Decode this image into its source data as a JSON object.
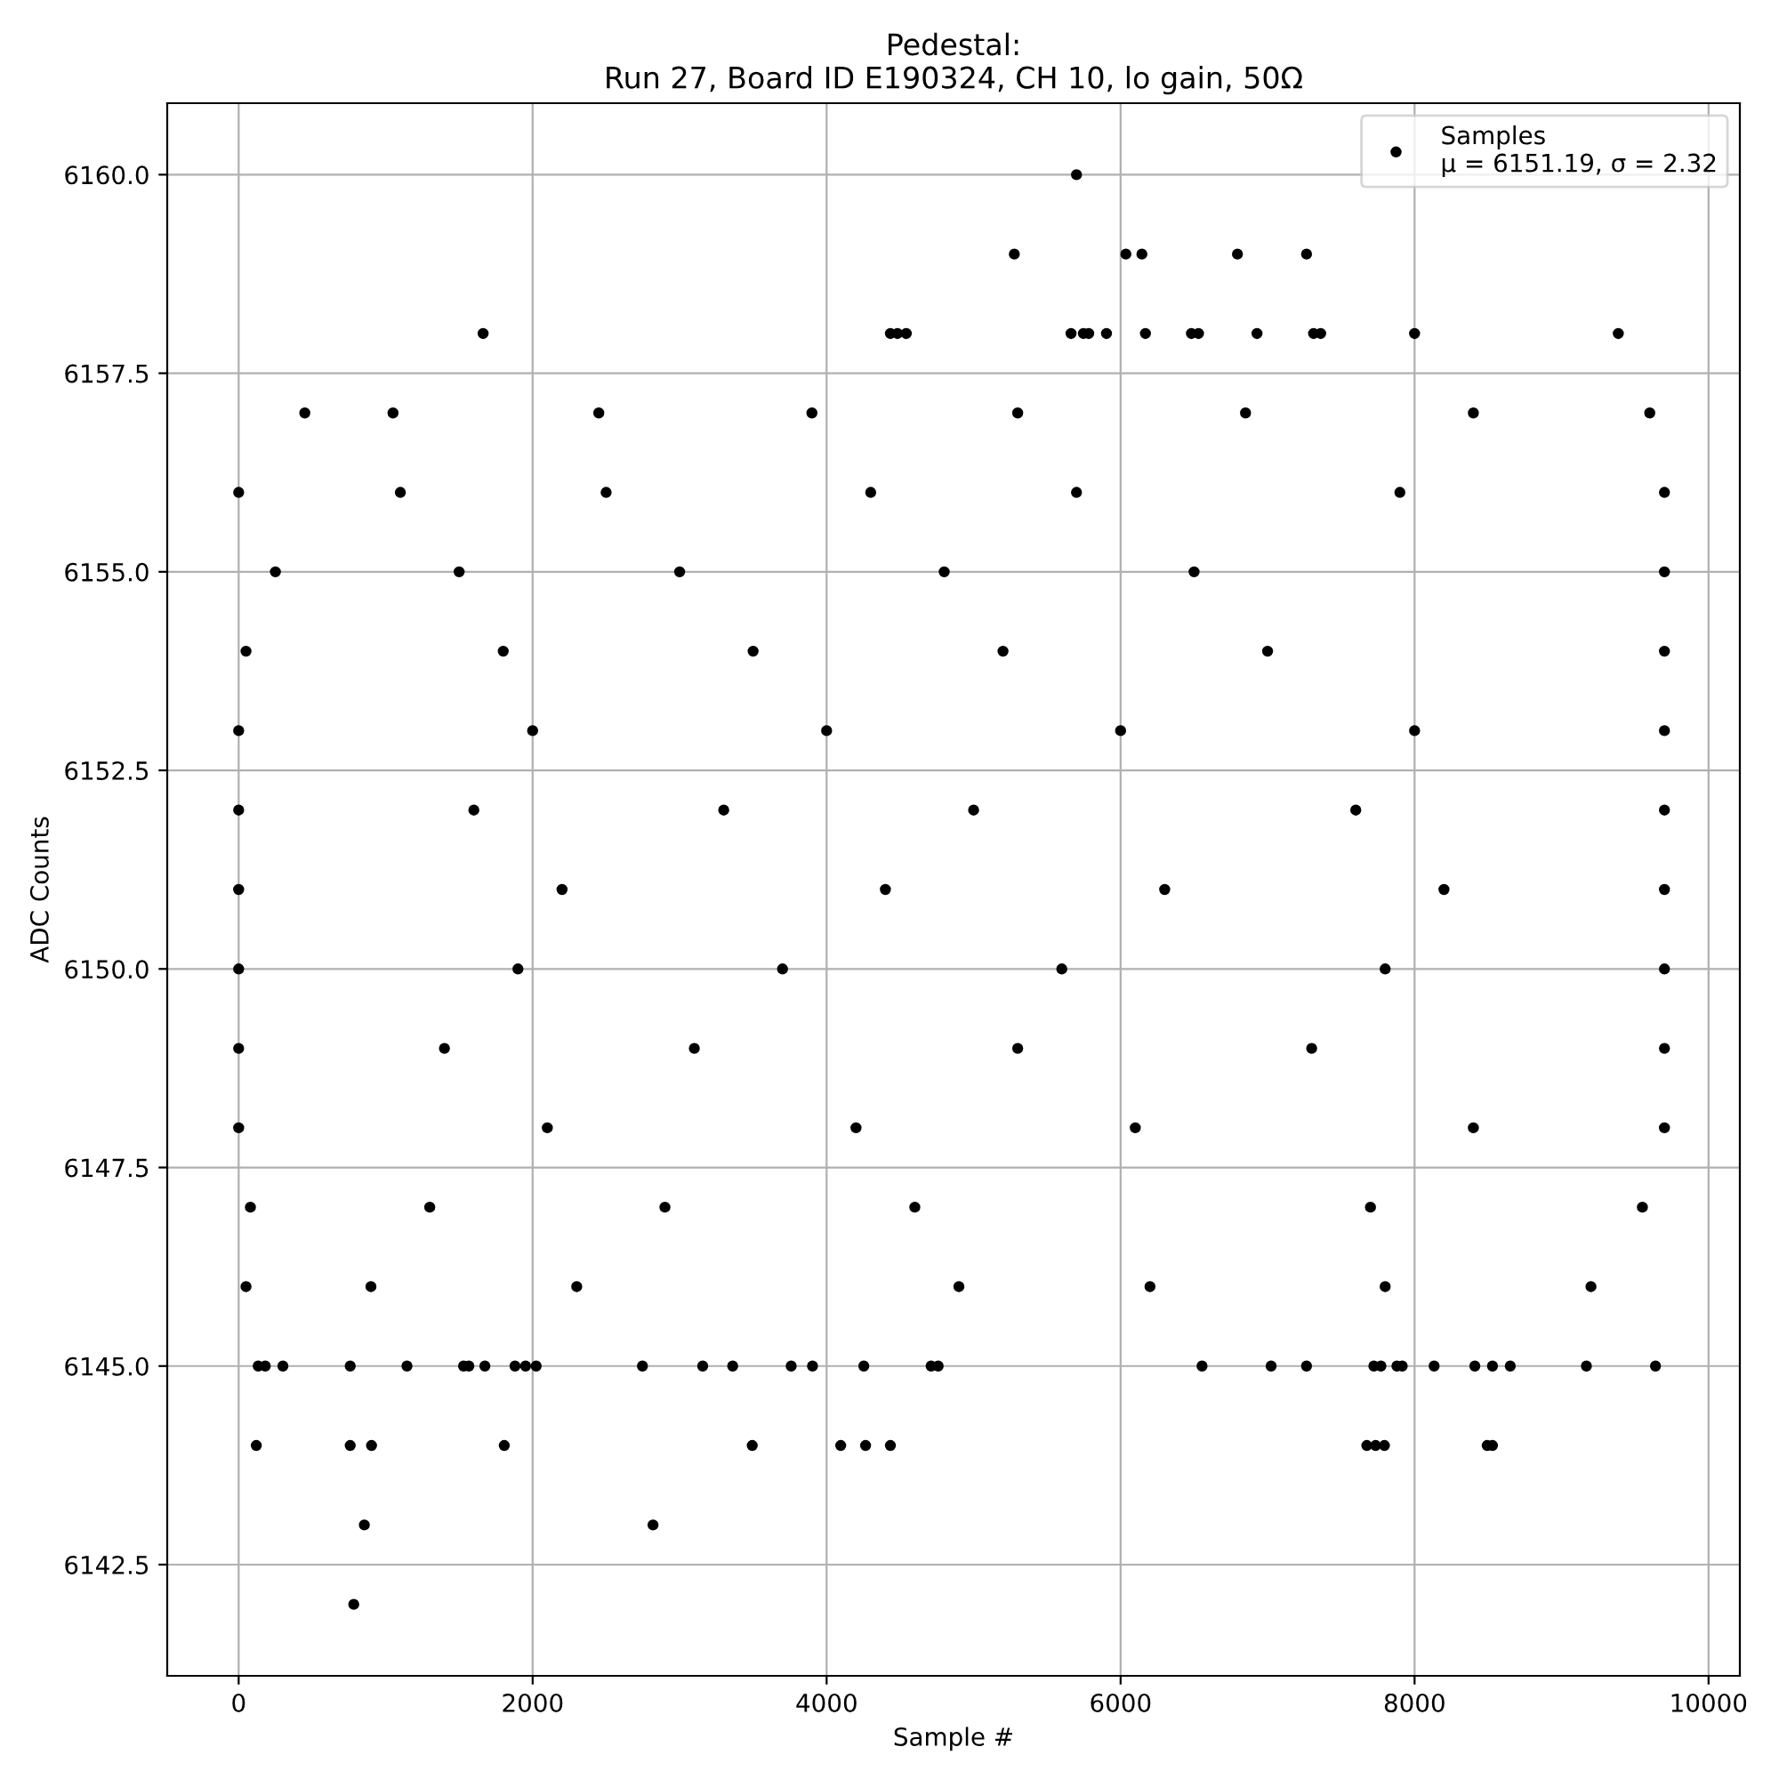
{
  "chart_data": {
    "type": "scatter",
    "title": "Pedestal:\nRun 27, Board ID E190324, CH 10, lo gain, 50Ω",
    "xlabel": "Sample #",
    "ylabel": "ADC Counts",
    "xlim": [
      -486,
      10213
    ],
    "ylim": [
      6141.1,
      6160.9
    ],
    "xticks": [
      0,
      2000,
      4000,
      6000,
      8000,
      10000
    ],
    "yticks": [
      {
        "value": 6142.5,
        "label": "6142.5"
      },
      {
        "value": 6145,
        "label": "6145.0"
      },
      {
        "value": 6147.5,
        "label": "6147.5"
      },
      {
        "value": 6150,
        "label": "6150.0"
      },
      {
        "value": 6152.5,
        "label": "6152.5"
      },
      {
        "value": 6155,
        "label": "6155.0"
      },
      {
        "value": 6157.5,
        "label": "6157.5"
      },
      {
        "value": 6160,
        "label": "6160.0"
      }
    ],
    "grid": true,
    "legend": "top right",
    "marker": "circle",
    "series": [
      {
        "name": "Samples\nμ = 6151.19, σ = 2.32",
        "color": "#000000",
        "x": [
          5700,
          5277,
          6036,
          6145,
          6795,
          7265,
          1663,
          4434,
          4482,
          4542,
          5663,
          5747,
          5783,
          5904,
          6169,
          6482,
          6530,
          6928,
          7313,
          7361,
          8000,
          9386,
          855,
          2819,
          783,
          120,
          759,
          904,
          1807,
          3494,
          4096,
          4265,
          4434,
          7675,
          7735,
          7795,
          8494,
          8530,
          133,
          181,
          301,
          759,
          1145,
          1530,
          1566,
          1675,
          1880,
          1952,
          2024,
          2747,
          3157,
          3361,
          3759,
          3904,
          4253,
          4711,
          4759,
          6554,
          7024,
          7265,
          7723,
          7771,
          7880,
          7916,
          8133,
          8410,
          8530,
          8651,
          9169,
          9639,
          450,
          1050,
          2450,
          3900,
          5300,
          6850,
          8400,
          9600,
          0,
          1100,
          2500,
          4300,
          5700,
          7900,
          9700,
          250,
          1500,
          3000,
          4800,
          6500,
          9700,
          50,
          1800,
          3500,
          5200,
          7000,
          9700,
          0,
          2000,
          4000,
          6000,
          8000,
          9700,
          0,
          1600,
          3300,
          5000,
          7600,
          9700,
          0,
          2200,
          4400,
          6300,
          8200,
          9700,
          0,
          1900,
          3700,
          5600,
          7800,
          9700,
          0,
          1400,
          3100,
          5300,
          7300,
          9700,
          0,
          2100,
          4200,
          6100,
          8400,
          9700,
          80,
          1300,
          2900,
          4600,
          7700,
          9550,
          50,
          900,
          2300,
          4900,
          6200,
          7800,
          9200
        ],
        "values": [
          6160,
          6159,
          6159,
          6159,
          6159,
          6159,
          6158,
          6158,
          6158,
          6158,
          6158,
          6158,
          6158,
          6158,
          6158,
          6158,
          6158,
          6158,
          6158,
          6158,
          6158,
          6158,
          6143,
          6143,
          6142,
          6144,
          6144,
          6144,
          6144,
          6144,
          6144,
          6144,
          6144,
          6144,
          6144,
          6144,
          6144,
          6144,
          6145,
          6145,
          6145,
          6145,
          6145,
          6145,
          6145,
          6145,
          6145,
          6145,
          6145,
          6145,
          6145,
          6145,
          6145,
          6145,
          6145,
          6145,
          6145,
          6145,
          6145,
          6145,
          6145,
          6145,
          6145,
          6145,
          6145,
          6145,
          6145,
          6145,
          6145,
          6145,
          6157,
          6157,
          6157,
          6157,
          6157,
          6157,
          6157,
          6157,
          6156,
          6156,
          6156,
          6156,
          6156,
          6156,
          6156,
          6155,
          6155,
          6155,
          6155,
          6155,
          6155,
          6154,
          6154,
          6154,
          6154,
          6154,
          6154,
          6153,
          6153,
          6153,
          6153,
          6153,
          6153,
          6152,
          6152,
          6152,
          6152,
          6152,
          6152,
          6151,
          6151,
          6151,
          6151,
          6151,
          6151,
          6150,
          6150,
          6150,
          6150,
          6150,
          6150,
          6149,
          6149,
          6149,
          6149,
          6149,
          6149,
          6148,
          6148,
          6148,
          6148,
          6148,
          6148,
          6147,
          6147,
          6147,
          6147,
          6147,
          6147,
          6146,
          6146,
          6146,
          6146,
          6146,
          6146,
          6146
        ]
      }
    ]
  }
}
